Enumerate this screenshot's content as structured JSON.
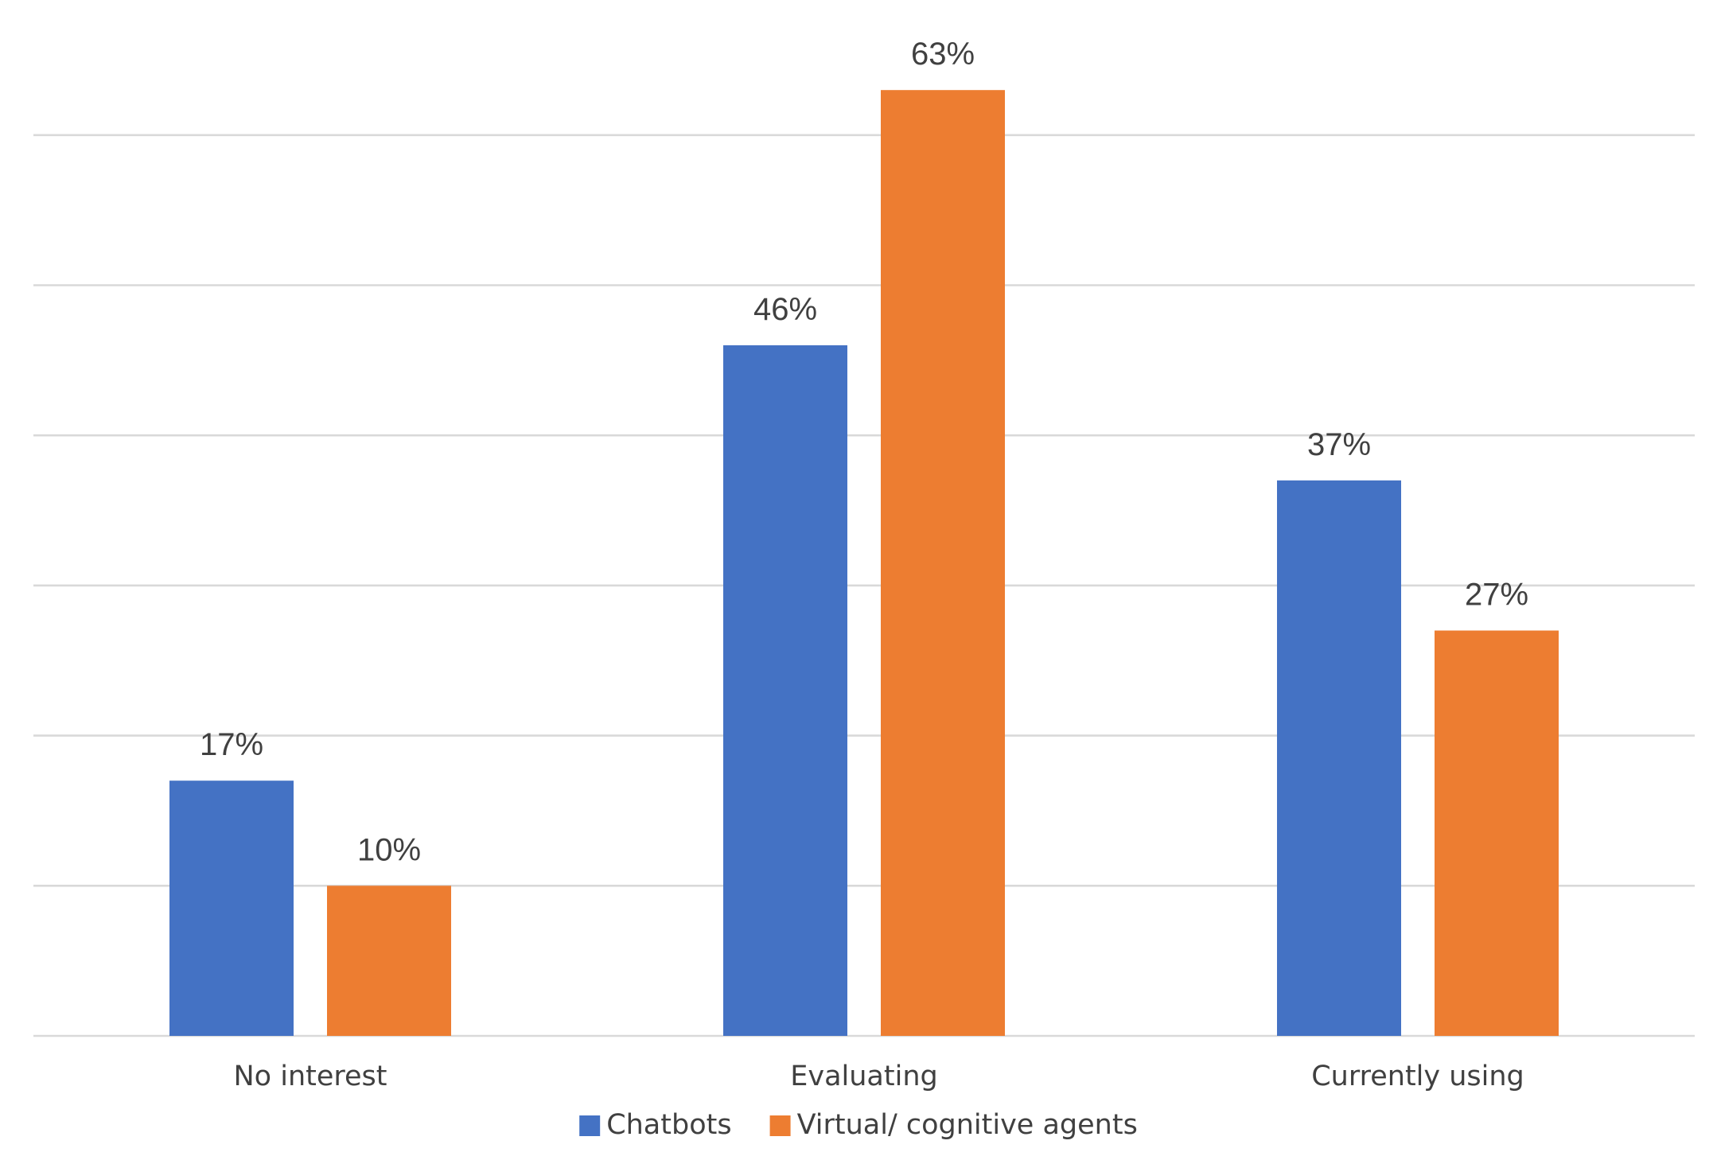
{
  "chart_data": {
    "type": "bar",
    "categories": [
      "No interest",
      "Evaluating",
      "Currently using"
    ],
    "series": [
      {
        "name": "Chatbots",
        "values": [
          17,
          46,
          37
        ],
        "labels": [
          "17%",
          "46%",
          "37%"
        ],
        "color": "#4472c4"
      },
      {
        "name": "Virtual/ cognitive agents",
        "values": [
          10,
          63,
          27
        ],
        "labels": [
          "10%",
          "63%",
          "27%"
        ],
        "color": "#ed7d31"
      }
    ],
    "ylim": [
      0,
      60
    ],
    "y_gridlines": [
      0,
      10,
      20,
      30,
      40,
      50,
      60
    ],
    "y_tick_labels_shown": false,
    "grid": true,
    "legend": "bottom-center",
    "title": "",
    "xlabel": "",
    "ylabel": ""
  }
}
